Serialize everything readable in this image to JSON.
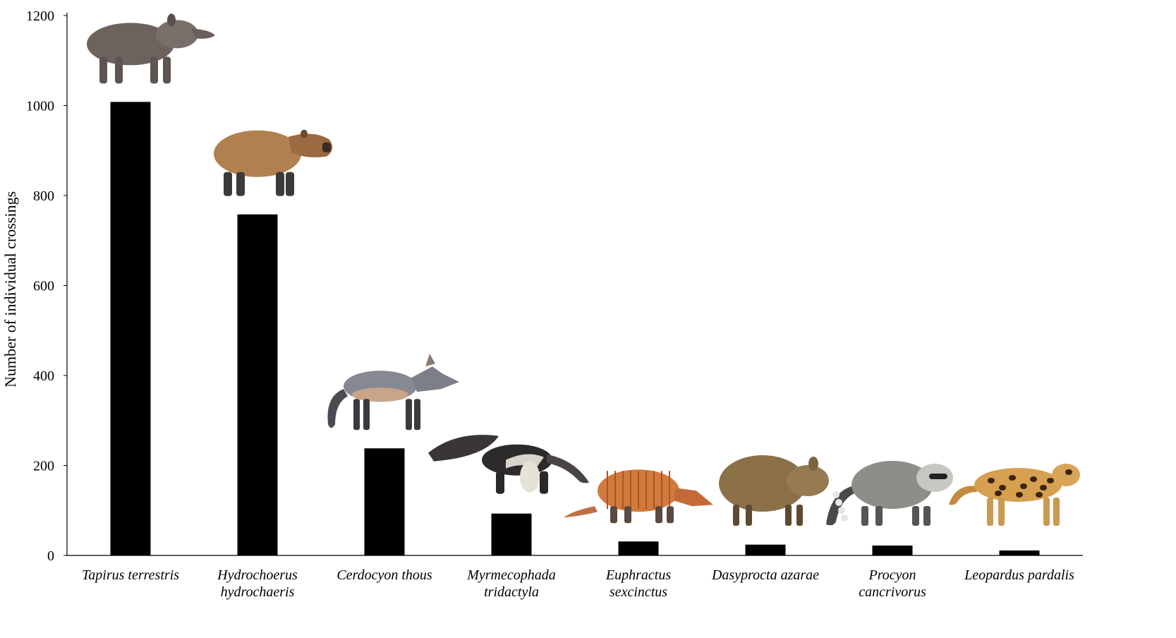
{
  "chart_data": {
    "type": "bar",
    "title": "",
    "xlabel": "",
    "ylabel": "Number of individual crossings",
    "ylim": [
      0,
      1200
    ],
    "yticks": [
      0,
      200,
      400,
      600,
      800,
      1000,
      1200
    ],
    "grid": false,
    "legend": "none",
    "bar_color": "#000000",
    "categories": [
      [
        "Tapirus terrestris"
      ],
      [
        "Hydrochoerus",
        "hydrochaeris"
      ],
      [
        "Cerdocyon thous"
      ],
      [
        "Myrmecophada",
        "tridactyla"
      ],
      [
        "Euphractus",
        "sexcinctus"
      ],
      [
        "Dasyprocta azarae"
      ],
      [
        "Procyon",
        "cancrivorus"
      ],
      [
        "Leopardus pardalis"
      ]
    ],
    "values": [
      1008,
      758,
      238,
      93,
      31,
      24,
      22,
      11
    ],
    "animal_icons": [
      "tapir-icon",
      "capybara-icon",
      "crab-eating-fox-icon",
      "giant-anteater-icon",
      "armadillo-icon",
      "agouti-icon",
      "raccoon-icon",
      "ocelot-icon"
    ]
  }
}
